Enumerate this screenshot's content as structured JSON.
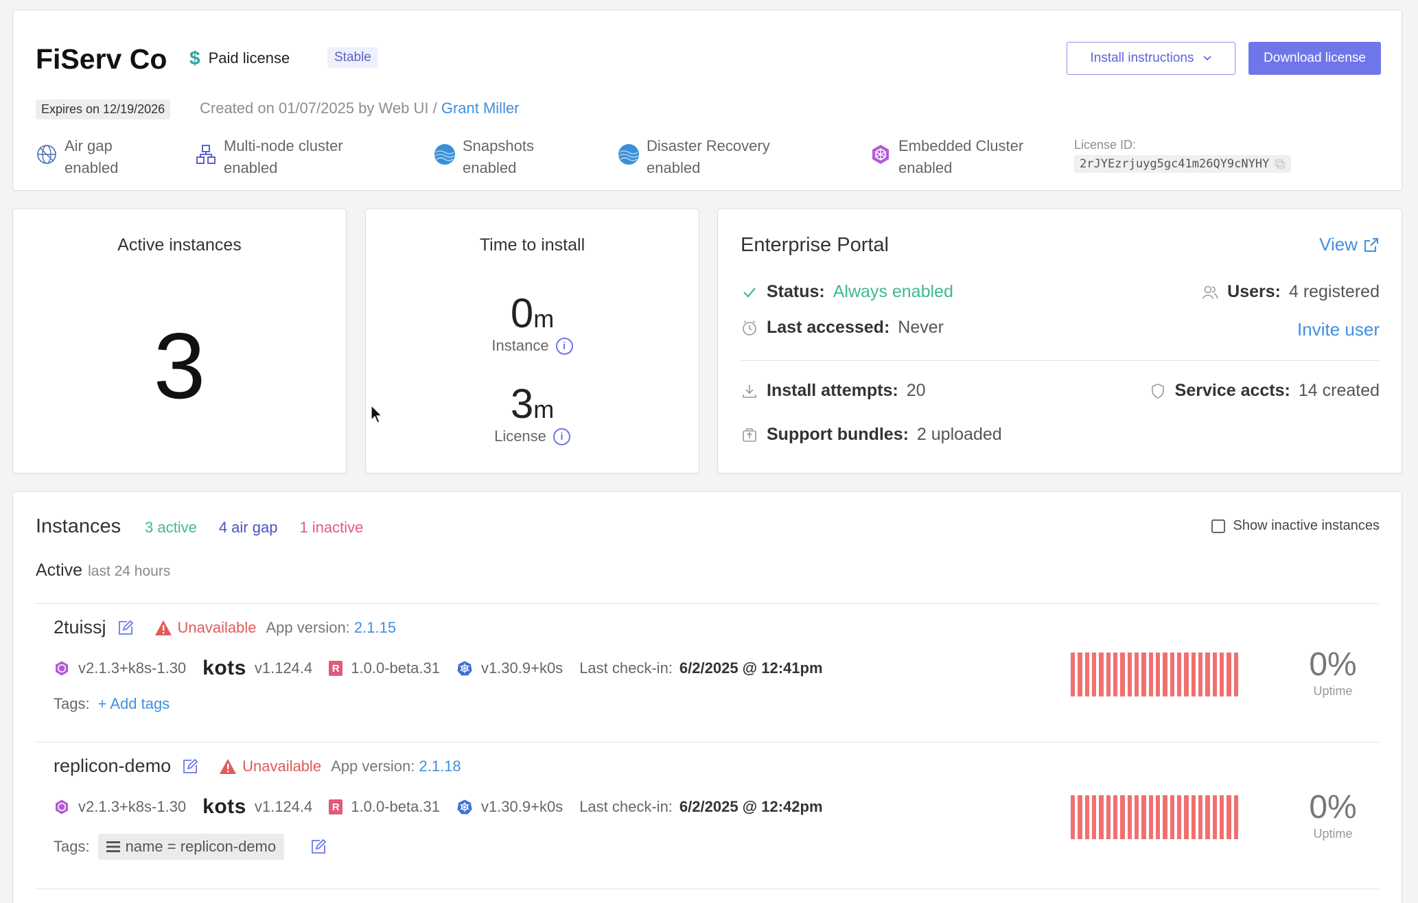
{
  "header": {
    "customer_name": "FiServ Co",
    "license_type": "Paid license",
    "channel_badge": "Stable",
    "install_instructions_label": "Install instructions",
    "download_license_label": "Download license",
    "expires": "Expires on 12/19/2026",
    "created_prefix": "Created on 01/07/2025 by Web UI / ",
    "created_by": "Grant Miller",
    "features": [
      {
        "icon": "globe-icon",
        "line1": "Air gap",
        "line2": "enabled"
      },
      {
        "icon": "cluster-icon",
        "line1": "Multi-node cluster",
        "line2": "enabled"
      },
      {
        "icon": "wave-icon",
        "line1": "Snapshots",
        "line2": "enabled"
      },
      {
        "icon": "wave-icon",
        "line1": "Disaster Recovery",
        "line2": "enabled"
      },
      {
        "icon": "helm-wheel-icon",
        "line1": "Embedded Cluster",
        "line2": "enabled"
      }
    ],
    "license_id_label": "License ID:",
    "license_id": "2rJYEzrjuyg5gc41m26QY9cNYHY"
  },
  "active_instances": {
    "title": "Active instances",
    "value": "3"
  },
  "time_to_install": {
    "title": "Time to install",
    "instance_value": "0",
    "instance_unit": "m",
    "instance_label": "Instance",
    "license_value": "3",
    "license_unit": "m",
    "license_label": "License"
  },
  "portal": {
    "title": "Enterprise Portal",
    "view_label": "View",
    "status_key": "Status:",
    "status_value": "Always enabled",
    "users_key": "Users:",
    "users_value": "4 registered",
    "last_accessed_key": "Last accessed:",
    "last_accessed_value": "Never",
    "invite_label": "Invite user",
    "install_attempts_key": "Install attempts:",
    "install_attempts_value": "20",
    "service_accts_key": "Service accts:",
    "service_accts_value": "14 created",
    "support_bundles_key": "Support bundles:",
    "support_bundles_value": "2 uploaded"
  },
  "instances": {
    "title": "Instances",
    "active_badge": "3 active",
    "airgap_badge": "4 air gap",
    "inactive_badge": "1 inactive",
    "show_inactive_label": "Show inactive instances",
    "section_title": "Active",
    "section_sub": "last 24 hours",
    "rows": [
      {
        "name": "2tuissj",
        "status": "Unavailable",
        "app_version_label": "App version:",
        "app_version": "2.1.15",
        "ec_version": "v2.1.3+k8s-1.30",
        "kots_label": "kots",
        "kots_version": "v1.124.4",
        "replicated_version": "1.0.0-beta.31",
        "k8s_version": "v1.30.9+k0s",
        "last_checkin_label": "Last check-in:",
        "last_checkin": "6/2/2025 @ 12:41pm",
        "tags_label": "Tags:",
        "tags_action": "+ Add tags",
        "uptime": "0%",
        "uptime_label": "Uptime"
      },
      {
        "name": "replicon-demo",
        "status": "Unavailable",
        "app_version_label": "App version:",
        "app_version": "2.1.18",
        "ec_version": "v2.1.3+k8s-1.30",
        "kots_label": "kots",
        "kots_version": "v1.124.4",
        "replicated_version": "1.0.0-beta.31",
        "k8s_version": "v1.30.9+k0s",
        "last_checkin_label": "Last check-in:",
        "last_checkin": "6/2/2025 @ 12:42pm",
        "tags_label": "Tags:",
        "tag": "name = replicon-demo",
        "uptime": "0%",
        "uptime_label": "Uptime"
      }
    ]
  },
  "colors": {
    "accent": "#6f76e9",
    "link": "#3f8fdf",
    "success": "#3fb98d",
    "danger": "#e05b5b",
    "uptime_bar": "#f07070"
  }
}
